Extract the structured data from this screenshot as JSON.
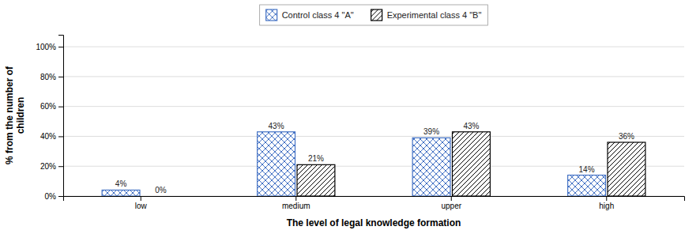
{
  "chart_data": {
    "type": "bar",
    "xlabel": "The level of legal knowledge formation",
    "ylabel": "% from the number of\nchildren",
    "categories": [
      "low",
      "medium",
      "upper",
      "high"
    ],
    "series": [
      {
        "name": "Control class 4 \"A\"",
        "color": "#4472C4",
        "values": [
          4,
          43,
          39,
          14
        ],
        "value_labels": [
          "4%",
          "43%",
          "39%",
          "14%"
        ]
      },
      {
        "name": "Experimental class 4 \"B\"",
        "color": "black",
        "values": [
          0,
          21,
          43,
          36
        ],
        "value_labels": [
          "0%",
          "21%",
          "43%",
          "36%"
        ]
      }
    ],
    "ylim": [
      0,
      108
    ],
    "yticks": [
      {
        "value": 0,
        "label": "0%"
      },
      {
        "value": 20,
        "label": "20%"
      },
      {
        "value": 40,
        "label": "40%"
      },
      {
        "value": 60,
        "label": "60%"
      },
      {
        "value": 80,
        "label": "80%"
      },
      {
        "value": 100,
        "label": "100%"
      }
    ],
    "grid": true,
    "legend": "top",
    "data_labels": true
  }
}
